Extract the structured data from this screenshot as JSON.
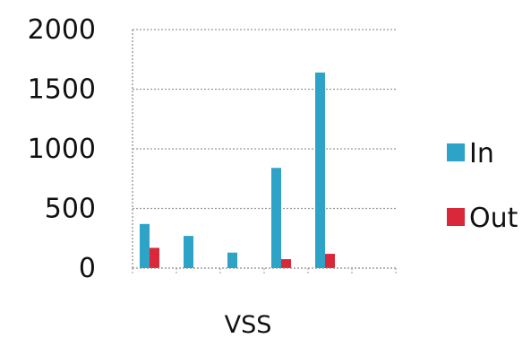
{
  "chart_data": {
    "type": "bar",
    "xlabel": "VSS",
    "ylabel": "",
    "ylim": [
      0,
      2000
    ],
    "yticks": [
      0,
      500,
      1000,
      1500,
      2000
    ],
    "ytick_labels": [
      "0",
      "500",
      "1000",
      "1500",
      "2000"
    ],
    "categories": [
      "",
      "",
      "",
      "",
      "",
      ""
    ],
    "series": [
      {
        "name": "In",
        "color": "#2ea3c8",
        "values": [
          370,
          270,
          130,
          840,
          1640,
          0
        ]
      },
      {
        "name": "Out",
        "color": "#d9283a",
        "values": [
          170,
          0,
          0,
          75,
          120,
          0
        ]
      }
    ],
    "grid": true,
    "legend_position": "right"
  }
}
